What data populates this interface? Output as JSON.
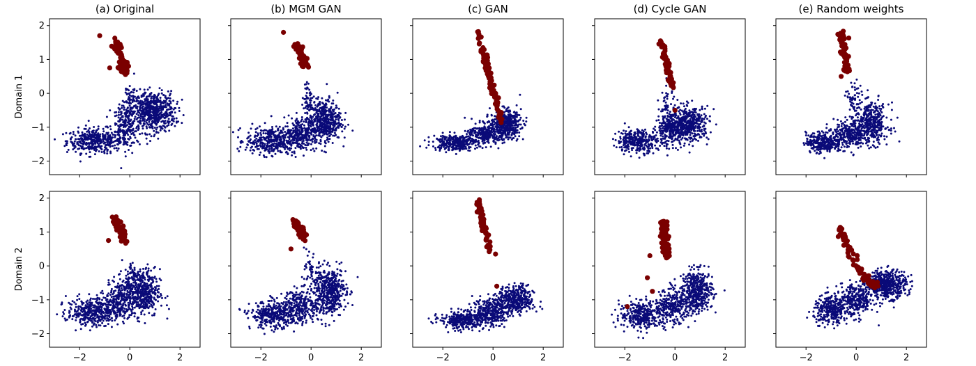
{
  "colors": {
    "background_points": "#0a0a78",
    "highlight_points": "#7a0000",
    "axes": "#000000"
  },
  "chart_data": {
    "type": "scatter",
    "layout": "grid",
    "rows": [
      "Domain 1",
      "Domain 2"
    ],
    "columns": [
      "(a) Original",
      "(b) MGM GAN",
      "(c) GAN",
      "(d) Cycle GAN",
      "(e) Random weights"
    ],
    "xlim": [
      -3.2,
      2.8
    ],
    "ylim": [
      -2.4,
      2.2
    ],
    "xticks": [
      -2,
      0,
      2
    ],
    "yticks": [
      -2,
      -1,
      0,
      1,
      2
    ],
    "xtick_labels": [
      "−2",
      "0",
      "2"
    ],
    "ytick_labels": [
      "−2",
      "−1",
      "0",
      "1",
      "2"
    ],
    "sharex": true,
    "sharey": true,
    "series_colors": {
      "background": "#0a0a78",
      "highlight": "#7a0000"
    },
    "panels": [
      {
        "row": 0,
        "col": 0,
        "blue_clusters": [
          {
            "cx": -1.4,
            "cy": -1.4,
            "sx": 0.55,
            "sy": 0.18,
            "n": 380
          },
          {
            "cx": -0.2,
            "cy": -1.0,
            "sx": 0.25,
            "sy": 0.3,
            "n": 200
          },
          {
            "cx": 0.9,
            "cy": -0.55,
            "sx": 0.45,
            "sy": 0.3,
            "n": 620
          },
          {
            "cx": 0.0,
            "cy": -0.2,
            "sx": 0.15,
            "sy": 0.3,
            "n": 50
          }
        ],
        "red_path": [
          [
            -0.2,
            0.6
          ],
          [
            -0.3,
            0.9
          ],
          [
            -0.45,
            1.3
          ],
          [
            -0.6,
            1.5
          ]
        ],
        "red_spread": 0.12,
        "red_n": 80,
        "red_extra": [
          [
            -1.2,
            1.7
          ],
          [
            -0.8,
            0.75
          ]
        ]
      },
      {
        "row": 0,
        "col": 1,
        "blue_clusters": [
          {
            "cx": -1.6,
            "cy": -1.4,
            "sx": 0.5,
            "sy": 0.2,
            "n": 360
          },
          {
            "cx": -0.4,
            "cy": -1.2,
            "sx": 0.35,
            "sy": 0.25,
            "n": 250
          },
          {
            "cx": 0.5,
            "cy": -0.8,
            "sx": 0.35,
            "sy": 0.3,
            "n": 500
          },
          {
            "cx": -0.1,
            "cy": -0.1,
            "sx": 0.12,
            "sy": 0.2,
            "n": 40
          }
        ],
        "red_path": [
          [
            -0.25,
            0.8
          ],
          [
            -0.35,
            1.1
          ],
          [
            -0.55,
            1.45
          ]
        ],
        "red_spread": 0.1,
        "red_n": 70,
        "red_extra": [
          [
            -1.1,
            1.8
          ]
        ]
      },
      {
        "row": 0,
        "col": 2,
        "blue_clusters": [
          {
            "cx": -1.5,
            "cy": -1.45,
            "sx": 0.45,
            "sy": 0.12,
            "n": 300
          },
          {
            "cx": -0.3,
            "cy": -1.2,
            "sx": 0.35,
            "sy": 0.15,
            "n": 250
          },
          {
            "cx": 0.5,
            "cy": -0.9,
            "sx": 0.3,
            "sy": 0.2,
            "n": 450
          }
        ],
        "red_path": [
          [
            0.35,
            -0.9
          ],
          [
            0.2,
            -0.4
          ],
          [
            0.0,
            0.1
          ],
          [
            -0.15,
            0.6
          ],
          [
            -0.35,
            1.1
          ],
          [
            -0.6,
            1.85
          ]
        ],
        "red_spread": 0.07,
        "red_n": 90,
        "red_extra": []
      },
      {
        "row": 0,
        "col": 3,
        "blue_clusters": [
          {
            "cx": -1.5,
            "cy": -1.4,
            "sx": 0.4,
            "sy": 0.17,
            "n": 320
          },
          {
            "cx": -0.2,
            "cy": -1.1,
            "sx": 0.3,
            "sy": 0.22,
            "n": 250
          },
          {
            "cx": 0.55,
            "cy": -0.9,
            "sx": 0.4,
            "sy": 0.25,
            "n": 450
          },
          {
            "cx": -0.3,
            "cy": -0.4,
            "sx": 0.15,
            "sy": 0.3,
            "n": 50
          }
        ],
        "red_path": [
          [
            -0.1,
            0.2
          ],
          [
            -0.3,
            0.8
          ],
          [
            -0.55,
            1.55
          ]
        ],
        "red_spread": 0.07,
        "red_n": 70,
        "red_extra": [
          [
            0.0,
            -0.5
          ]
        ]
      },
      {
        "row": 0,
        "col": 4,
        "blue_clusters": [
          {
            "cx": -1.3,
            "cy": -1.45,
            "sx": 0.35,
            "sy": 0.15,
            "n": 300
          },
          {
            "cx": -0.3,
            "cy": -1.2,
            "sx": 0.3,
            "sy": 0.2,
            "n": 250
          },
          {
            "cx": 0.6,
            "cy": -0.9,
            "sx": 0.35,
            "sy": 0.3,
            "n": 400
          },
          {
            "cx": -0.1,
            "cy": -0.2,
            "sx": 0.15,
            "sy": 0.3,
            "n": 60
          }
        ],
        "red_path": [
          [
            -0.35,
            0.6
          ],
          [
            -0.45,
            1.2
          ],
          [
            -0.6,
            1.8
          ]
        ],
        "red_spread": 0.09,
        "red_n": 70,
        "red_extra": [
          [
            -0.6,
            0.5
          ]
        ]
      },
      {
        "row": 1,
        "col": 0,
        "blue_clusters": [
          {
            "cx": -1.5,
            "cy": -1.35,
            "sx": 0.5,
            "sy": 0.2,
            "n": 380
          },
          {
            "cx": -0.4,
            "cy": -1.0,
            "sx": 0.3,
            "sy": 0.3,
            "n": 250
          },
          {
            "cx": 0.5,
            "cy": -0.8,
            "sx": 0.35,
            "sy": 0.35,
            "n": 450
          },
          {
            "cx": 0.1,
            "cy": -0.25,
            "sx": 0.12,
            "sy": 0.2,
            "n": 40
          }
        ],
        "red_path": [
          [
            -0.2,
            0.7
          ],
          [
            -0.35,
            1.0
          ],
          [
            -0.6,
            1.4
          ]
        ],
        "red_spread": 0.1,
        "red_n": 70,
        "red_extra": [
          [
            -0.85,
            0.75
          ]
        ]
      },
      {
        "row": 1,
        "col": 1,
        "blue_clusters": [
          {
            "cx": -1.5,
            "cy": -1.45,
            "sx": 0.45,
            "sy": 0.2,
            "n": 350
          },
          {
            "cx": -0.4,
            "cy": -1.2,
            "sx": 0.35,
            "sy": 0.25,
            "n": 250
          },
          {
            "cx": 0.7,
            "cy": -0.75,
            "sx": 0.35,
            "sy": 0.35,
            "n": 480
          },
          {
            "cx": 0.0,
            "cy": -0.1,
            "sx": 0.12,
            "sy": 0.2,
            "n": 40
          }
        ],
        "red_path": [
          [
            -0.3,
            0.8
          ],
          [
            -0.45,
            1.1
          ],
          [
            -0.7,
            1.35
          ]
        ],
        "red_spread": 0.1,
        "red_n": 60,
        "red_extra": [
          [
            -0.8,
            0.5
          ]
        ]
      },
      {
        "row": 1,
        "col": 2,
        "blue_clusters": [
          {
            "cx": -1.2,
            "cy": -1.6,
            "sx": 0.45,
            "sy": 0.13,
            "n": 320
          },
          {
            "cx": -0.1,
            "cy": -1.35,
            "sx": 0.35,
            "sy": 0.2,
            "n": 300
          },
          {
            "cx": 0.9,
            "cy": -1.0,
            "sx": 0.35,
            "sy": 0.2,
            "n": 400
          }
        ],
        "red_path": [
          [
            -0.1,
            0.4
          ],
          [
            -0.3,
            0.9
          ],
          [
            -0.5,
            1.5
          ],
          [
            -0.6,
            1.9
          ]
        ],
        "red_spread": 0.07,
        "red_n": 70,
        "red_extra": [
          [
            0.15,
            -0.6
          ],
          [
            0.1,
            0.35
          ]
        ]
      },
      {
        "row": 1,
        "col": 3,
        "blue_clusters": [
          {
            "cx": -1.3,
            "cy": -1.45,
            "sx": 0.45,
            "sy": 0.2,
            "n": 320
          },
          {
            "cx": -0.1,
            "cy": -1.2,
            "sx": 0.35,
            "sy": 0.25,
            "n": 300
          },
          {
            "cx": 0.9,
            "cy": -0.75,
            "sx": 0.3,
            "sy": 0.3,
            "n": 420
          }
        ],
        "red_path": [
          [
            -0.3,
            0.2
          ],
          [
            -0.4,
            0.8
          ],
          [
            -0.45,
            1.3
          ]
        ],
        "red_spread": 0.11,
        "red_n": 90,
        "red_extra": [
          [
            -1.0,
            0.3
          ],
          [
            -1.1,
            -0.35
          ],
          [
            -1.9,
            -1.2
          ],
          [
            -0.9,
            -0.75
          ]
        ]
      },
      {
        "row": 1,
        "col": 4,
        "blue_clusters": [
          {
            "cx": -1.0,
            "cy": -1.3,
            "sx": 0.35,
            "sy": 0.2,
            "n": 300
          },
          {
            "cx": 0.0,
            "cy": -1.0,
            "sx": 0.35,
            "sy": 0.25,
            "n": 300
          },
          {
            "cx": 1.2,
            "cy": -0.55,
            "sx": 0.4,
            "sy": 0.2,
            "n": 500
          }
        ],
        "red_path": [
          [
            0.9,
            -0.6
          ],
          [
            0.5,
            -0.5
          ],
          [
            0.0,
            0.0
          ],
          [
            -0.4,
            0.7
          ],
          [
            -0.7,
            1.1
          ]
        ],
        "red_spread": 0.1,
        "red_n": 80,
        "red_extra": []
      }
    ]
  }
}
